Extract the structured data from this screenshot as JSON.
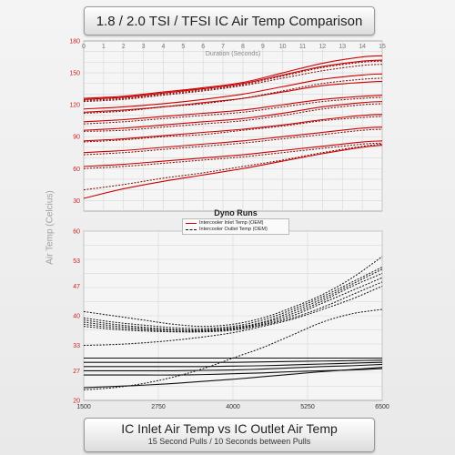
{
  "title": "1.8 / 2.0 TSI / TFSI IC Air Temp Comparison",
  "bottom_title": "IC Inlet Air Temp vs IC Outlet Air Temp",
  "bottom_subtitle": "15 Second Pulls / 10 Seconds between Pulls",
  "shared_ylabel": "Air Temp (Celcius)",
  "colors": {
    "inlet": "#cc0000",
    "outlet": "#111111",
    "axis_red": "#cc2222"
  },
  "legend": {
    "title": "Dyno Runs",
    "inlet_label": "Intercooler Inlet Temp (OEM)",
    "outlet_label": "Intercooler Outlet Temp (OEM)"
  },
  "chart_data": [
    {
      "type": "line",
      "xlabel": "Duration (Seconds)",
      "xlim": [
        0,
        15
      ],
      "ylim": [
        20,
        180
      ],
      "x_ticks": [
        0,
        1,
        2,
        3,
        4,
        5,
        6,
        7,
        8,
        9,
        10,
        11,
        12,
        13,
        14,
        15
      ],
      "y_ticks": [
        30,
        60,
        90,
        120,
        150,
        180
      ],
      "x": [
        0,
        2,
        4,
        6,
        8,
        10,
        12,
        14,
        15
      ],
      "series_solid": [
        [
          126,
          128,
          132,
          136,
          141,
          150,
          159,
          165,
          166
        ],
        [
          125,
          127,
          131,
          135,
          140,
          148,
          156,
          161,
          162
        ],
        [
          116,
          118,
          121,
          125,
          130,
          137,
          144,
          148,
          149
        ],
        [
          113,
          115,
          118,
          122,
          126,
          132,
          138,
          141,
          142
        ],
        [
          104,
          106,
          109,
          112,
          115,
          120,
          125,
          128,
          129
        ],
        [
          96,
          98,
          101,
          104,
          107,
          112,
          118,
          122,
          123
        ],
        [
          86,
          88,
          91,
          94,
          97,
          101,
          106,
          110,
          111
        ],
        [
          75,
          77,
          80,
          83,
          86,
          90,
          94,
          98,
          99
        ],
        [
          62,
          64,
          67,
          70,
          73,
          77,
          81,
          85,
          86
        ],
        [
          32,
          41,
          48,
          54,
          60,
          67,
          74,
          80,
          82
        ]
      ],
      "series_dashed": [
        [
          124,
          126,
          130,
          134,
          139,
          147,
          155,
          160,
          161
        ],
        [
          123,
          125,
          129,
          133,
          138,
          145,
          152,
          157,
          158
        ],
        [
          112,
          114,
          118,
          121,
          126,
          133,
          140,
          144,
          145
        ],
        [
          102,
          104,
          107,
          110,
          113,
          118,
          123,
          126,
          127
        ],
        [
          95,
          96,
          99,
          102,
          105,
          110,
          116,
          120,
          121
        ],
        [
          85,
          87,
          90,
          92,
          96,
          100,
          105,
          108,
          109
        ],
        [
          73,
          75,
          78,
          81,
          84,
          88,
          92,
          96,
          97
        ],
        [
          60,
          62,
          65,
          68,
          71,
          75,
          79,
          83,
          84
        ],
        [
          40,
          45,
          51,
          56,
          62,
          68,
          75,
          81,
          83
        ]
      ]
    },
    {
      "type": "line",
      "xlim": [
        1500,
        6500
      ],
      "ylim": [
        20,
        60
      ],
      "x_ticks": [
        1500,
        2750,
        4000,
        5250,
        6500
      ],
      "y_ticks": [
        20,
        27,
        33,
        40,
        47,
        53,
        60
      ],
      "x": [
        1500,
        2000,
        2500,
        3000,
        3500,
        4000,
        4500,
        5000,
        5500,
        6000,
        6500
      ],
      "series_dashed": [
        [
          41.0,
          40.0,
          39.0,
          38.0,
          37.5,
          38.0,
          39.5,
          42.0,
          45.0,
          49.0,
          54.0
        ],
        [
          39.5,
          38.5,
          37.8,
          37.2,
          37.0,
          37.5,
          39.0,
          41.5,
          44.5,
          48.0,
          51.5
        ],
        [
          39.0,
          38.0,
          37.3,
          36.8,
          36.7,
          37.2,
          38.5,
          41.0,
          44.0,
          47.5,
          51.0
        ],
        [
          38.5,
          37.6,
          37.0,
          36.6,
          36.5,
          37.0,
          38.3,
          40.5,
          43.5,
          47.0,
          50.0
        ],
        [
          38.0,
          37.2,
          36.7,
          36.3,
          36.3,
          36.8,
          38.0,
          40.0,
          43.0,
          46.0,
          49.0
        ],
        [
          37.5,
          36.8,
          36.4,
          36.2,
          36.2,
          36.6,
          37.8,
          39.5,
          42.0,
          45.0,
          48.0
        ],
        [
          33.0,
          33.2,
          33.6,
          34.2,
          35.0,
          36.0,
          37.5,
          39.2,
          41.5,
          44.0,
          47.0
        ],
        [
          22.5,
          23.0,
          24.0,
          25.5,
          27.5,
          30.0,
          32.5,
          35.5,
          38.5,
          40.5,
          41.5
        ]
      ],
      "series_solid": [
        [
          30.0,
          30.0,
          30.0,
          30.0,
          30.0,
          30.0,
          30.0,
          30.0,
          30.0,
          30.0,
          30.0
        ],
        [
          29.0,
          29.0,
          29.0,
          29.0,
          29.0,
          29.0,
          29.1,
          29.2,
          29.3,
          29.4,
          29.5
        ],
        [
          28.0,
          28.0,
          28.0,
          28.0,
          28.0,
          28.1,
          28.2,
          28.4,
          28.6,
          28.8,
          29.0
        ],
        [
          27.0,
          27.0,
          27.0,
          27.0,
          27.1,
          27.2,
          27.4,
          27.7,
          28.0,
          28.2,
          28.5
        ],
        [
          26.0,
          26.0,
          26.0,
          26.0,
          26.1,
          26.3,
          26.5,
          26.8,
          27.0,
          27.2,
          27.5
        ],
        [
          23.0,
          23.3,
          23.6,
          24.0,
          24.5,
          25.0,
          25.6,
          26.2,
          26.8,
          27.3,
          27.8
        ]
      ]
    }
  ]
}
